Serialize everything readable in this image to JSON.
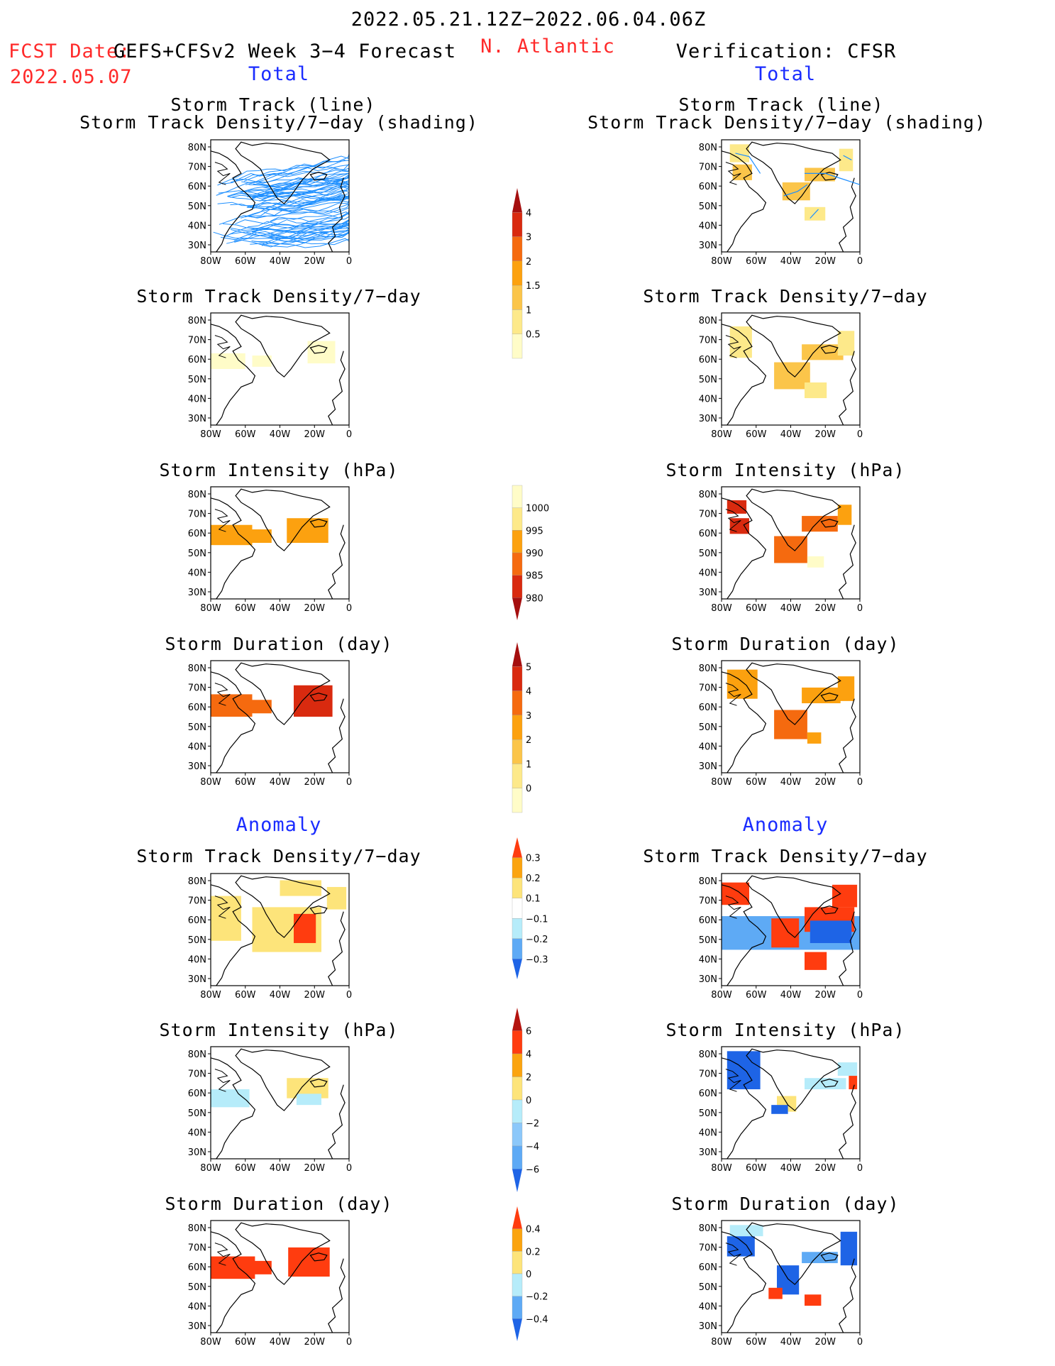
{
  "header": {
    "period": "2022.05.21.12Z−2022.06.04.06Z",
    "fcst_label": "FCST Date:",
    "fcst_date": "2022.05.07",
    "model": "GEFS+CFSv2 Week 3−4 Forecast",
    "region": "N. Atlantic",
    "verification": "Verification: CFSR"
  },
  "columns": {
    "left_total": "Total",
    "right_total": "Total",
    "left_anomaly": "Anomaly",
    "right_anomaly": "Anomaly"
  },
  "panel_titles": {
    "track_line": "Storm Track (line)",
    "track_density_shading": "Storm Track Density/7−day (shading)",
    "track_density": "Storm Track Density/7−day",
    "intensity": "Storm Intensity (hPa)",
    "duration": "Storm Duration (day)"
  },
  "axes": {
    "x_ticks": [
      "80W",
      "60W",
      "40W",
      "20W",
      "0"
    ],
    "y_ticks": [
      "80N",
      "70N",
      "60N",
      "50N",
      "40N",
      "30N"
    ]
  },
  "colors": {
    "track_line": "#1e8fff",
    "text_red": "#ff2a2a",
    "text_blue": "#1a2cff"
  },
  "colorbars": [
    {
      "id": "density_total",
      "labels": [
        "4",
        "3",
        "2",
        "1.5",
        "1",
        "0.5"
      ],
      "colors": [
        "#a50f0f",
        "#d92a0f",
        "#f56a0f",
        "#fca10f",
        "#fbc54a",
        "#fde98a",
        "#fffcc8"
      ],
      "direction": "up"
    },
    {
      "id": "intensity_total",
      "labels": [
        "1000",
        "995",
        "990",
        "985",
        "980"
      ],
      "colors": [
        "#fffcc8",
        "#fde98a",
        "#fca10f",
        "#f56a0f",
        "#d92a0f",
        "#a50f0f"
      ],
      "direction": "down"
    },
    {
      "id": "duration_total",
      "labels": [
        "5",
        "4",
        "3",
        "2",
        "1",
        "0"
      ],
      "colors": [
        "#a50f0f",
        "#d92a0f",
        "#f56a0f",
        "#fca10f",
        "#fbc54a",
        "#fde98a",
        "#fffcc8"
      ],
      "direction": "up"
    },
    {
      "id": "density_anomaly",
      "labels": [
        "0.3",
        "0.2",
        "0.1",
        "−0.1",
        "−0.2",
        "−0.3"
      ],
      "colors": [
        "#ff3c0f",
        "#fba40f",
        "#fde47a",
        "#ffffff",
        "#b6ecfa",
        "#5eaaf5",
        "#1e64e6"
      ],
      "direction": "both"
    },
    {
      "id": "intensity_anomaly",
      "labels": [
        "6",
        "4",
        "2",
        "0",
        "−2",
        "−4",
        "−6"
      ],
      "colors": [
        "#b4140f",
        "#ff3c0f",
        "#fba40f",
        "#fde47a",
        "#b6ecfa",
        "#8cc8fa",
        "#5eaaf5",
        "#1e64e6"
      ],
      "direction": "both"
    },
    {
      "id": "duration_anomaly",
      "labels": [
        "0.4",
        "0.2",
        "0",
        "−0.2",
        "−0.4"
      ],
      "colors": [
        "#ff3c0f",
        "#fba40f",
        "#fde47a",
        "#b6ecfa",
        "#5eaaf5",
        "#1e64e6"
      ],
      "direction": "both"
    }
  ],
  "chart_data": [
    {
      "type": "heatmap",
      "panel": "left-1",
      "title": "Storm Track (line) / Storm Track Density/7−day (shading)",
      "note": "dense ensemble storm tracks 30N–75N, 80W–0"
    },
    {
      "type": "heatmap",
      "panel": "right-1",
      "title": "Storm Track (line) / Storm Track Density/7−day (shading)"
    },
    {
      "type": "heatmap",
      "panel": "left-2",
      "title": "Storm Track Density/7−day"
    },
    {
      "type": "heatmap",
      "panel": "right-2",
      "title": "Storm Track Density/7−day"
    },
    {
      "type": "heatmap",
      "panel": "left-3",
      "title": "Storm Intensity (hPa)"
    },
    {
      "type": "heatmap",
      "panel": "right-3",
      "title": "Storm Intensity (hPa)"
    },
    {
      "type": "heatmap",
      "panel": "left-4",
      "title": "Storm Duration (day)"
    },
    {
      "type": "heatmap",
      "panel": "right-4",
      "title": "Storm Duration (day)"
    },
    {
      "type": "heatmap",
      "panel": "left-5",
      "title": "Storm Track Density/7−day (anomaly)"
    },
    {
      "type": "heatmap",
      "panel": "right-5",
      "title": "Storm Track Density/7−day (anomaly)"
    },
    {
      "type": "heatmap",
      "panel": "left-6",
      "title": "Storm Intensity (hPa) (anomaly)"
    },
    {
      "type": "heatmap",
      "panel": "right-6",
      "title": "Storm Intensity (hPa) (anomaly)"
    },
    {
      "type": "heatmap",
      "panel": "left-7",
      "title": "Storm Duration (day) (anomaly)"
    },
    {
      "type": "heatmap",
      "panel": "right-7",
      "title": "Storm Duration (day) (anomaly)"
    }
  ]
}
